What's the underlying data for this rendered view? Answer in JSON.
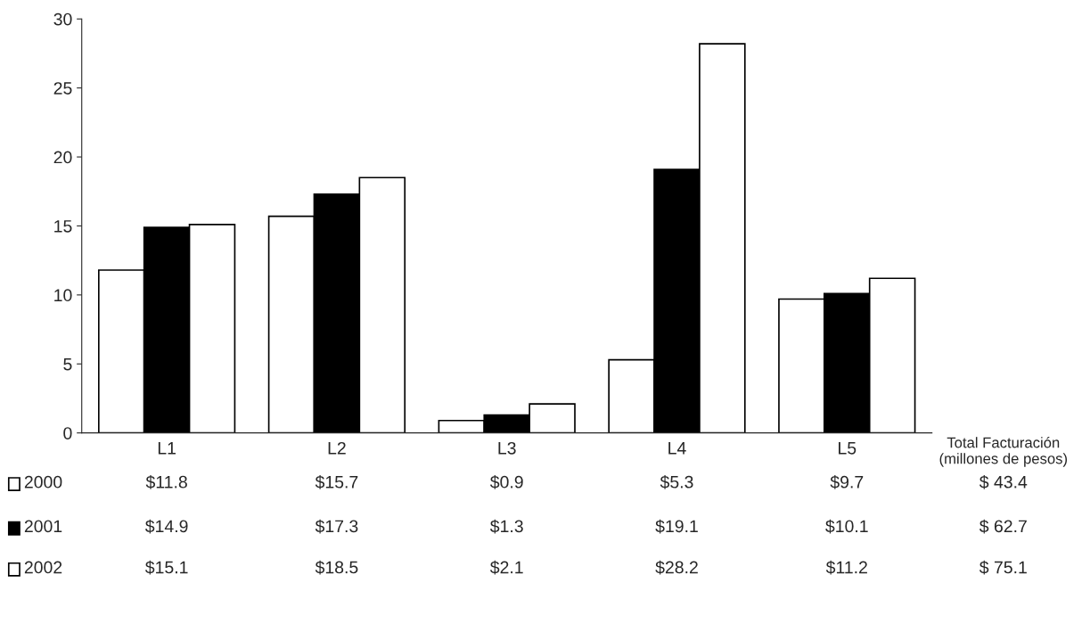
{
  "chart_data": {
    "type": "bar",
    "categories": [
      "L1",
      "L2",
      "L3",
      "L4",
      "L5"
    ],
    "series": [
      {
        "name": "2000",
        "color": "#ffffff",
        "values": [
          11.8,
          15.7,
          0.9,
          5.3,
          9.7
        ],
        "value_labels": [
          "$11.8",
          "$15.7",
          "$0.9",
          "$5.3",
          "$9.7"
        ]
      },
      {
        "name": "2001",
        "color": "#000000",
        "values": [
          14.9,
          17.3,
          1.3,
          19.1,
          10.1
        ],
        "value_labels": [
          "$14.9",
          "$17.3",
          "$1.3",
          "$19.1",
          "$10.1"
        ]
      },
      {
        "name": "2002",
        "color": "#ffffff",
        "values": [
          15.1,
          18.5,
          2.1,
          28.2,
          11.2
        ],
        "value_labels": [
          "$15.1",
          "$18.5",
          "$2.1",
          "$28.2",
          "$11.2"
        ]
      }
    ],
    "ylim": [
      0,
      30
    ],
    "yticks": [
      0,
      5,
      10,
      15,
      20,
      25,
      30
    ],
    "legend": "bottom",
    "annotations": [
      "Total Facturación\n(millones de pesos)",
      "$ 43.4",
      "$ 62.7",
      "$ 75.1"
    ]
  }
}
